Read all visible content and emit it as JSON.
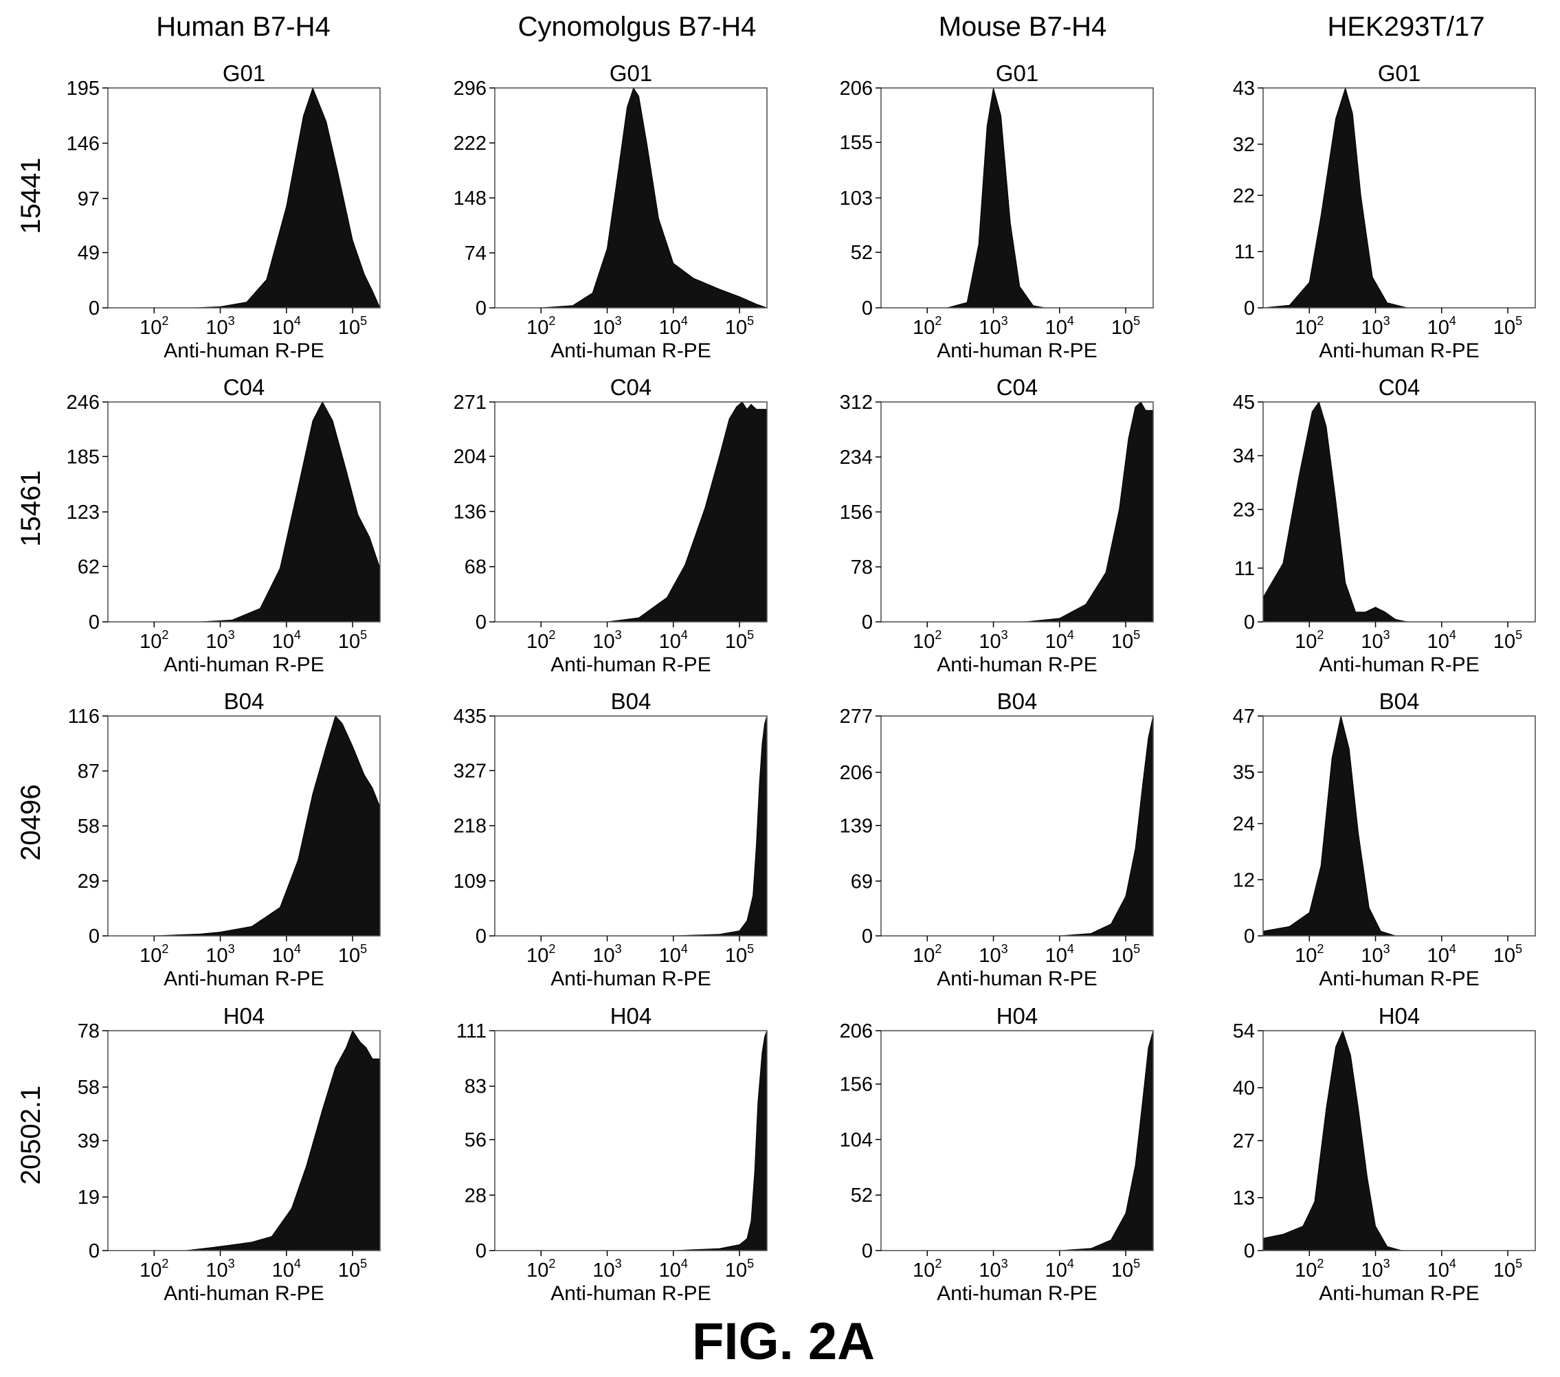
{
  "figure": {
    "caption": "FIG. 2A",
    "columns": [
      "Human B7-H4",
      "Cynomolgus B7-H4",
      "Mouse B7-H4",
      "HEK293T/17"
    ],
    "rows": [
      "15441",
      "15461",
      "20496",
      "20502.1"
    ]
  },
  "chart_data": [
    {
      "type": "area",
      "row": "15441",
      "column": "Human B7-H4",
      "title": "G01",
      "xlabel": "Anti-human R-PE",
      "x_scale": "log",
      "xlim": [
        20,
        260000
      ],
      "xticks": [
        "10^2",
        "10^3",
        "10^4",
        "10^5"
      ],
      "ylim": [
        0,
        195
      ],
      "yticks": [
        0,
        49,
        97,
        146,
        195
      ],
      "x": [
        20,
        100,
        400,
        1000,
        2500,
        5000,
        10000,
        18000,
        25000,
        40000,
        60000,
        100000,
        150000,
        200000,
        260000
      ],
      "y": [
        0,
        0,
        0,
        1,
        5,
        25,
        90,
        170,
        195,
        165,
        120,
        60,
        30,
        15,
        0
      ]
    },
    {
      "type": "area",
      "row": "15441",
      "column": "Cynomolgus B7-H4",
      "title": "G01",
      "xlabel": "Anti-human R-PE",
      "x_scale": "log",
      "xlim": [
        20,
        260000
      ],
      "xticks": [
        "10^2",
        "10^3",
        "10^4",
        "10^5"
      ],
      "ylim": [
        0,
        296
      ],
      "yticks": [
        0,
        74,
        148,
        222,
        296
      ],
      "x": [
        20,
        100,
        300,
        600,
        1000,
        1500,
        2000,
        2500,
        3000,
        4000,
        6000,
        10000,
        20000,
        50000,
        100000,
        180000,
        260000
      ],
      "y": [
        0,
        0,
        3,
        20,
        80,
        190,
        270,
        296,
        285,
        220,
        120,
        60,
        40,
        25,
        15,
        5,
        0
      ]
    },
    {
      "type": "area",
      "row": "15441",
      "column": "Mouse B7-H4",
      "title": "G01",
      "xlabel": "Anti-human R-PE",
      "x_scale": "log",
      "xlim": [
        20,
        260000
      ],
      "xticks": [
        "10^2",
        "10^3",
        "10^4",
        "10^5"
      ],
      "ylim": [
        0,
        206
      ],
      "yticks": [
        0,
        52,
        103,
        155,
        206
      ],
      "x": [
        20,
        200,
        400,
        600,
        800,
        1000,
        1300,
        1800,
        2500,
        4000,
        6000,
        260000
      ],
      "y": [
        0,
        0,
        5,
        60,
        170,
        206,
        180,
        80,
        20,
        2,
        0,
        0
      ]
    },
    {
      "type": "area",
      "row": "15441",
      "column": "HEK293T/17",
      "title": "G01",
      "xlabel": "Anti-human R-PE",
      "x_scale": "log",
      "xlim": [
        20,
        260000
      ],
      "xticks": [
        "10^2",
        "10^3",
        "10^4",
        "10^5"
      ],
      "ylim": [
        0,
        43
      ],
      "yticks": [
        0,
        11,
        22,
        32,
        43
      ],
      "x": [
        20,
        50,
        100,
        150,
        250,
        350,
        450,
        600,
        900,
        1500,
        3000,
        260000
      ],
      "y": [
        0,
        0.5,
        5,
        18,
        37,
        43,
        38,
        22,
        6,
        1,
        0,
        0
      ]
    },
    {
      "type": "area",
      "row": "15461",
      "column": "Human B7-H4",
      "title": "C04",
      "xlabel": "Anti-human R-PE",
      "x_scale": "log",
      "xlim": [
        20,
        260000
      ],
      "xticks": [
        "10^2",
        "10^3",
        "10^4",
        "10^5"
      ],
      "ylim": [
        0,
        246
      ],
      "yticks": [
        0,
        62,
        123,
        185,
        246
      ],
      "x": [
        20,
        500,
        1500,
        4000,
        8000,
        15000,
        25000,
        35000,
        50000,
        80000,
        120000,
        180000,
        260000
      ],
      "y": [
        0,
        0,
        2,
        15,
        60,
        150,
        225,
        246,
        225,
        170,
        120,
        95,
        60
      ]
    },
    {
      "type": "area",
      "row": "15461",
      "column": "Cynomolgus B7-H4",
      "title": "C04",
      "xlabel": "Anti-human R-PE",
      "x_scale": "log",
      "xlim": [
        20,
        260000
      ],
      "xticks": [
        "10^2",
        "10^3",
        "10^4",
        "10^5"
      ],
      "ylim": [
        0,
        271
      ],
      "yticks": [
        0,
        68,
        136,
        204,
        271
      ],
      "x": [
        20,
        1000,
        3000,
        8000,
        15000,
        30000,
        50000,
        70000,
        90000,
        110000,
        130000,
        150000,
        180000,
        260000
      ],
      "y": [
        0,
        0,
        5,
        30,
        70,
        140,
        205,
        250,
        265,
        271,
        262,
        268,
        262,
        262
      ]
    },
    {
      "type": "area",
      "row": "15461",
      "column": "Mouse B7-H4",
      "title": "C04",
      "xlabel": "Anti-human R-PE",
      "x_scale": "log",
      "xlim": [
        20,
        260000
      ],
      "xticks": [
        "10^2",
        "10^3",
        "10^4",
        "10^5"
      ],
      "ylim": [
        0,
        312
      ],
      "yticks": [
        0,
        78,
        156,
        234,
        312
      ],
      "x": [
        20,
        3000,
        10000,
        25000,
        50000,
        80000,
        110000,
        140000,
        170000,
        200000,
        260000
      ],
      "y": [
        0,
        0,
        5,
        25,
        70,
        160,
        260,
        305,
        312,
        300,
        300
      ]
    },
    {
      "type": "area",
      "row": "15461",
      "column": "HEK293T/17",
      "title": "C04",
      "xlabel": "Anti-human R-PE",
      "x_scale": "log",
      "xlim": [
        20,
        260000
      ],
      "xticks": [
        "10^2",
        "10^3",
        "10^4",
        "10^5"
      ],
      "ylim": [
        0,
        45
      ],
      "yticks": [
        0,
        11,
        23,
        34,
        45
      ],
      "x": [
        20,
        40,
        70,
        110,
        140,
        180,
        250,
        350,
        500,
        700,
        1000,
        1400,
        2000,
        3000,
        260000
      ],
      "y": [
        5,
        12,
        30,
        43,
        45,
        40,
        25,
        8,
        2,
        2,
        3,
        2,
        0.5,
        0,
        0
      ]
    },
    {
      "type": "area",
      "row": "20496",
      "column": "Human B7-H4",
      "title": "B04",
      "xlabel": "Anti-human R-PE",
      "x_scale": "log",
      "xlim": [
        20,
        260000
      ],
      "xticks": [
        "10^2",
        "10^3",
        "10^4",
        "10^5"
      ],
      "ylim": [
        0,
        116
      ],
      "yticks": [
        0,
        29,
        58,
        87,
        116
      ],
      "x": [
        20,
        100,
        500,
        1000,
        3000,
        8000,
        15000,
        25000,
        40000,
        55000,
        70000,
        100000,
        150000,
        200000,
        260000
      ],
      "y": [
        0,
        0,
        1,
        2,
        5,
        15,
        40,
        75,
        100,
        116,
        112,
        100,
        85,
        78,
        68
      ]
    },
    {
      "type": "area",
      "row": "20496",
      "column": "Cynomolgus B7-H4",
      "title": "B04",
      "xlabel": "Anti-human R-PE",
      "x_scale": "log",
      "xlim": [
        20,
        260000
      ],
      "xticks": [
        "10^2",
        "10^3",
        "10^4",
        "10^5"
      ],
      "ylim": [
        0,
        435
      ],
      "yticks": [
        0,
        109,
        218,
        327,
        435
      ],
      "x": [
        20,
        10000,
        50000,
        100000,
        130000,
        160000,
        180000,
        200000,
        220000,
        240000,
        260000
      ],
      "y": [
        0,
        0,
        3,
        10,
        30,
        80,
        180,
        300,
        380,
        420,
        435
      ]
    },
    {
      "type": "area",
      "row": "20496",
      "column": "Mouse B7-H4",
      "title": "B04",
      "xlabel": "Anti-human R-PE",
      "x_scale": "log",
      "xlim": [
        20,
        260000
      ],
      "xticks": [
        "10^2",
        "10^3",
        "10^4",
        "10^5"
      ],
      "ylim": [
        0,
        277
      ],
      "yticks": [
        0,
        69,
        139,
        206,
        277
      ],
      "x": [
        20,
        10000,
        30000,
        60000,
        100000,
        140000,
        180000,
        220000,
        260000
      ],
      "y": [
        0,
        0,
        3,
        15,
        50,
        110,
        190,
        250,
        277
      ]
    },
    {
      "type": "area",
      "row": "20496",
      "column": "HEK293T/17",
      "title": "B04",
      "xlabel": "Anti-human R-PE",
      "x_scale": "log",
      "xlim": [
        20,
        260000
      ],
      "xticks": [
        "10^2",
        "10^3",
        "10^4",
        "10^5"
      ],
      "ylim": [
        0,
        47
      ],
      "yticks": [
        0,
        12,
        24,
        35,
        47
      ],
      "x": [
        20,
        50,
        100,
        150,
        220,
        300,
        400,
        550,
        800,
        1200,
        2000,
        260000
      ],
      "y": [
        1,
        2,
        5,
        15,
        38,
        47,
        40,
        22,
        6,
        1,
        0,
        0
      ]
    },
    {
      "type": "area",
      "row": "20502.1",
      "column": "Human B7-H4",
      "title": "H04",
      "xlabel": "Anti-human R-PE",
      "x_scale": "log",
      "xlim": [
        20,
        260000
      ],
      "xticks": [
        "10^2",
        "10^3",
        "10^4",
        "10^5"
      ],
      "ylim": [
        0,
        78
      ],
      "yticks": [
        0,
        19,
        39,
        58,
        78
      ],
      "x": [
        20,
        300,
        700,
        1500,
        3000,
        6000,
        12000,
        20000,
        35000,
        55000,
        80000,
        100000,
        130000,
        160000,
        200000,
        260000
      ],
      "y": [
        0,
        0,
        1,
        2,
        3,
        5,
        15,
        30,
        50,
        65,
        72,
        78,
        74,
        72,
        68,
        68
      ]
    },
    {
      "type": "area",
      "row": "20502.1",
      "column": "Cynomolgus B7-H4",
      "title": "H04",
      "xlabel": "Anti-human R-PE",
      "x_scale": "log",
      "xlim": [
        20,
        260000
      ],
      "xticks": [
        "10^2",
        "10^3",
        "10^4",
        "10^5"
      ],
      "ylim": [
        0,
        111
      ],
      "yticks": [
        0,
        28,
        56,
        83,
        111
      ],
      "x": [
        20,
        10000,
        50000,
        100000,
        130000,
        150000,
        170000,
        190000,
        220000,
        240000,
        260000
      ],
      "y": [
        0,
        0,
        1,
        3,
        6,
        15,
        40,
        75,
        100,
        108,
        111
      ]
    },
    {
      "type": "area",
      "row": "20502.1",
      "column": "Mouse B7-H4",
      "title": "H04",
      "xlabel": "Anti-human R-PE",
      "x_scale": "log",
      "xlim": [
        20,
        260000
      ],
      "xticks": [
        "10^2",
        "10^3",
        "10^4",
        "10^5"
      ],
      "ylim": [
        0,
        206
      ],
      "yticks": [
        0,
        52,
        104,
        156,
        206
      ],
      "x": [
        20,
        10000,
        30000,
        60000,
        100000,
        140000,
        180000,
        220000,
        260000
      ],
      "y": [
        0,
        0,
        2,
        10,
        35,
        80,
        140,
        190,
        206
      ]
    },
    {
      "type": "area",
      "row": "20502.1",
      "column": "HEK293T/17",
      "title": "H04",
      "xlabel": "Anti-human R-PE",
      "x_scale": "log",
      "xlim": [
        20,
        260000
      ],
      "xticks": [
        "10^2",
        "10^3",
        "10^4",
        "10^5"
      ],
      "ylim": [
        0,
        54
      ],
      "yticks": [
        0,
        13,
        27,
        40,
        54
      ],
      "x": [
        20,
        40,
        80,
        120,
        180,
        250,
        320,
        420,
        550,
        750,
        1000,
        1500,
        2500,
        260000
      ],
      "y": [
        3,
        4,
        6,
        12,
        35,
        50,
        54,
        48,
        35,
        18,
        6,
        1,
        0,
        0
      ]
    }
  ]
}
